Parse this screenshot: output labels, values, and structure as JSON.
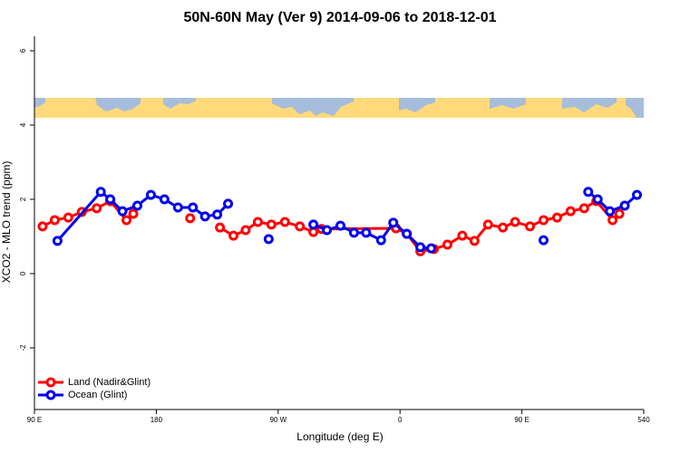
{
  "chart_data": {
    "type": "line",
    "title": "50N-60N May (Ver 9)   2014-09-06 to 2018-12-01",
    "x_label": "Longitude (deg E)",
    "y_label": "XCO2 - MLO trend (ppm)",
    "xlim": [
      90,
      540
    ],
    "ylim": [
      -3.66,
      6.44
    ],
    "xticks": [
      {
        "value": 90,
        "label": "90 E"
      },
      180,
      {
        "value": 270,
        "label": "90 W"
      },
      {
        "value": 360,
        "label": "0"
      },
      {
        "value": 450,
        "label": "90 E"
      },
      540
    ],
    "yticks": [
      -2,
      0,
      2,
      4,
      6
    ],
    "legend": "bottom-left",
    "series": [
      {
        "name": "Land (Nadir&Glint)",
        "color": "#ff0000",
        "x": [
          96,
          105,
          115,
          125,
          136,
          146,
          158,
          163,
          180,
          205,
          220,
          227,
          237,
          246,
          255,
          265,
          275,
          286,
          296,
          302,
          357,
          365,
          375,
          385,
          395,
          406,
          415,
          425,
          436,
          445,
          456,
          466,
          476,
          486,
          496,
          505,
          517,
          522
        ],
        "values": [
          1.27,
          1.44,
          1.51,
          1.66,
          1.76,
          1.95,
          1.44,
          1.61,
          null,
          1.49,
          null,
          1.24,
          1.02,
          1.17,
          1.39,
          1.32,
          1.39,
          1.27,
          1.12,
          1.2,
          1.22,
          1.07,
          0.6,
          0.66,
          0.78,
          1.02,
          0.88,
          1.32,
          1.24,
          1.39,
          1.27,
          1.44,
          1.51,
          1.68,
          1.76,
          1.95,
          1.44,
          1.61
        ]
      },
      {
        "name": "Ocean (Glint)",
        "color": "#0000ee",
        "x": [
          107,
          139,
          146,
          155,
          166,
          176,
          186,
          196,
          207,
          216,
          225,
          233,
          248,
          263,
          280,
          296,
          306,
          316,
          326,
          335,
          346,
          355,
          365,
          375,
          383,
          420,
          466,
          480,
          499,
          506,
          515,
          526,
          535
        ],
        "values": [
          0.88,
          2.2,
          2.0,
          1.68,
          1.83,
          2.12,
          2.0,
          1.78,
          1.78,
          1.54,
          1.59,
          1.88,
          null,
          0.93,
          null,
          1.32,
          1.17,
          1.29,
          1.1,
          1.1,
          0.9,
          1.37,
          1.07,
          0.71,
          0.68,
          null,
          0.9,
          null,
          2.2,
          2.0,
          1.68,
          1.83,
          2.12
        ]
      }
    ]
  }
}
